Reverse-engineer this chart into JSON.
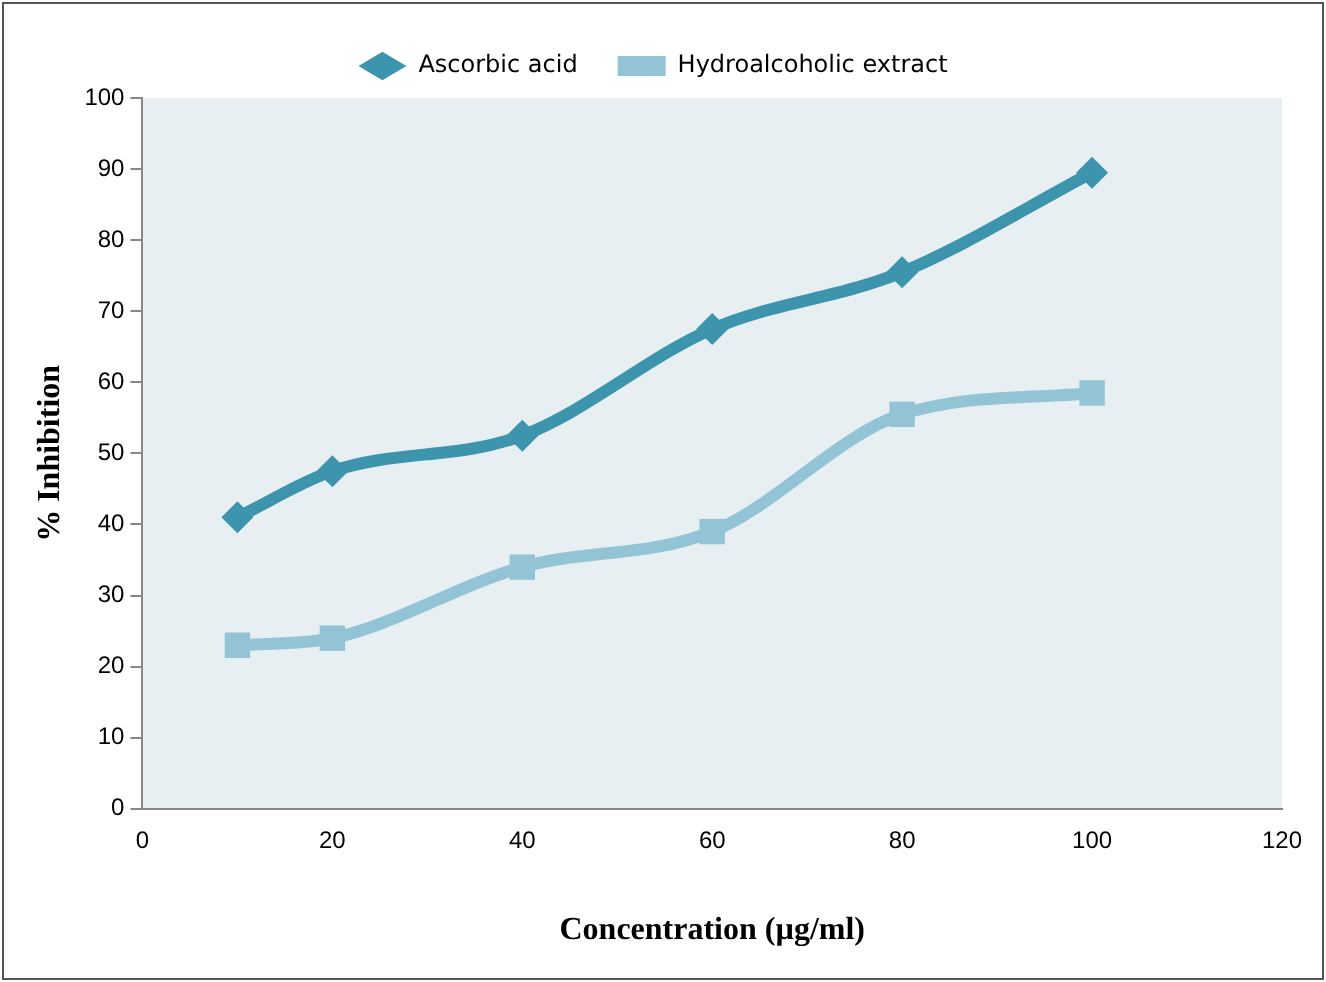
{
  "chart_data": {
    "type": "line",
    "xlabel": "Concentration (µg/ml)",
    "ylabel": "% Inhibition",
    "x": [
      10,
      20,
      40,
      60,
      80,
      100
    ],
    "series": [
      {
        "name": "Ascorbic acid",
        "color": "#3d95ad",
        "marker": "diamond",
        "values": [
          41,
          47.5,
          52.5,
          67.5,
          75.5,
          89.5
        ]
      },
      {
        "name": "Hydroalcoholic extract",
        "color": "#93c4d6",
        "marker": "square",
        "values": [
          23,
          24,
          34,
          39,
          55.5,
          58.5
        ]
      }
    ],
    "xlim": [
      0,
      120
    ],
    "xticks": [
      0,
      20,
      40,
      60,
      80,
      100,
      120
    ],
    "ylim": [
      0,
      100
    ],
    "yticks": [
      0,
      10,
      20,
      30,
      40,
      50,
      60,
      70,
      80,
      90,
      100
    ],
    "grid": false,
    "legend": "top",
    "line_style": "solid"
  }
}
